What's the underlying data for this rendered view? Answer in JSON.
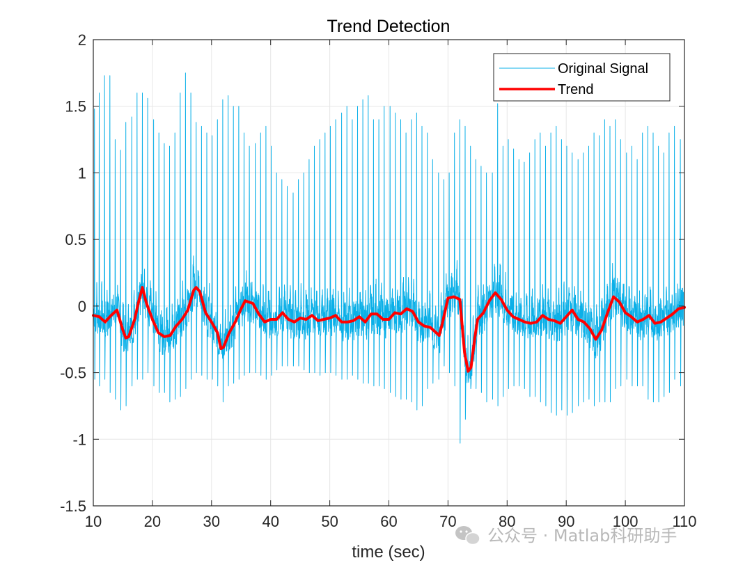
{
  "chart_data": {
    "type": "line",
    "title": "Trend Detection",
    "xlabel": "time (sec)",
    "ylabel": "",
    "xlim": [
      10,
      110
    ],
    "ylim": [
      -1.5,
      2
    ],
    "xticks": [
      10,
      20,
      30,
      40,
      50,
      60,
      70,
      80,
      90,
      100,
      110
    ],
    "yticks": [
      -1.5,
      -1,
      -0.5,
      0,
      0.5,
      1,
      1.5,
      2
    ],
    "xtick_labels": [
      "10",
      "20",
      "30",
      "40",
      "50",
      "60",
      "70",
      "80",
      "90",
      "100",
      "110"
    ],
    "ytick_labels": [
      "-1.5",
      "-1",
      "-0.5",
      "0",
      "0.5",
      "1",
      "1.5",
      "2"
    ],
    "grid": true,
    "legend_position": "top-right",
    "series": [
      {
        "name": "Original Signal",
        "color": "#0BB0E8",
        "style": "thin line, periodic spikes (beats)",
        "spike_times": [
          10.2,
          11.0,
          11.9,
          12.8,
          13.7,
          14.6,
          15.5,
          16.5,
          17.4,
          18.3,
          19.2,
          20.2,
          21.1,
          22.0,
          22.9,
          23.8,
          24.7,
          25.6,
          26.5,
          27.4,
          28.3,
          29.2,
          30.1,
          31.0,
          31.9,
          32.8,
          33.7,
          34.6,
          35.5,
          36.4,
          37.4,
          38.3,
          39.2,
          40.1,
          41.0,
          41.9,
          42.8,
          43.8,
          44.7,
          45.6,
          46.5,
          47.4,
          48.3,
          49.2,
          50.1,
          51.0,
          52.0,
          52.9,
          53.8,
          54.7,
          55.6,
          56.5,
          57.4,
          58.3,
          59.2,
          60.2,
          61.1,
          62.0,
          62.9,
          63.8,
          64.7,
          65.6,
          66.5,
          67.4,
          68.4,
          69.3,
          70.2,
          71.1,
          72.0,
          72.9,
          73.8,
          74.7,
          75.6,
          76.5,
          77.5,
          78.4,
          79.3,
          80.2,
          81.1,
          82.0,
          82.9,
          83.8,
          84.7,
          85.6,
          86.5,
          87.4,
          88.3,
          89.2,
          90.1,
          91.0,
          92.0,
          92.9,
          93.8,
          94.7,
          95.6,
          96.5,
          97.4,
          98.3,
          99.2,
          100.2,
          101.1,
          102.0,
          102.9,
          103.8,
          104.7,
          105.6,
          106.5,
          107.4,
          108.3,
          109.3
        ],
        "spike_peaks": [
          1.48,
          1.6,
          1.73,
          1.73,
          1.25,
          1.17,
          1.38,
          1.42,
          1.6,
          1.6,
          1.56,
          1.4,
          1.3,
          1.22,
          1.2,
          1.3,
          1.6,
          1.75,
          1.6,
          1.38,
          1.35,
          1.3,
          1.28,
          1.4,
          1.55,
          1.58,
          1.5,
          1.5,
          1.3,
          1.2,
          1.22,
          1.3,
          1.35,
          1.2,
          1.0,
          0.95,
          0.9,
          0.85,
          0.95,
          1.0,
          1.1,
          1.2,
          1.25,
          1.3,
          1.35,
          1.4,
          1.45,
          1.5,
          1.4,
          1.5,
          1.55,
          1.58,
          1.4,
          1.4,
          1.5,
          1.5,
          1.45,
          1.4,
          1.3,
          1.4,
          1.45,
          1.35,
          1.3,
          1.1,
          1.0,
          0.95,
          1.0,
          1.3,
          1.4,
          1.35,
          1.2,
          1.1,
          1.05,
          1.0,
          1.0,
          1.52,
          1.2,
          1.25,
          1.18,
          1.1,
          1.08,
          1.15,
          1.25,
          1.3,
          1.2,
          1.3,
          1.35,
          1.25,
          1.2,
          1.15,
          1.1,
          1.15,
          1.2,
          1.3,
          1.28,
          1.4,
          1.35,
          1.4,
          1.25,
          1.15,
          1.2,
          1.1,
          1.3,
          1.35,
          1.3,
          1.2,
          1.15,
          1.3,
          1.35,
          1.25,
          1.2
        ],
        "spike_troughs": [
          -0.55,
          -0.6,
          -0.55,
          -0.65,
          -0.7,
          -0.78,
          -0.75,
          -0.6,
          -0.55,
          -0.55,
          -0.5,
          -0.6,
          -0.65,
          -0.65,
          -0.72,
          -0.7,
          -0.68,
          -0.62,
          -0.55,
          -0.5,
          -0.52,
          -0.55,
          -0.55,
          -0.6,
          -0.72,
          -0.6,
          -0.58,
          -0.55,
          -0.52,
          -0.5,
          -0.5,
          -0.52,
          -0.55,
          -0.52,
          -0.48,
          -0.45,
          -0.45,
          -0.45,
          -0.45,
          -0.48,
          -0.5,
          -0.5,
          -0.52,
          -0.5,
          -0.5,
          -0.52,
          -0.55,
          -0.55,
          -0.52,
          -0.55,
          -0.58,
          -0.58,
          -0.6,
          -0.6,
          -0.62,
          -0.65,
          -0.68,
          -0.7,
          -0.7,
          -0.72,
          -0.78,
          -0.75,
          -0.62,
          -0.58,
          -0.55,
          -0.45,
          -0.5,
          -0.6,
          -1.03,
          -0.85,
          -0.62,
          -0.62,
          -0.65,
          -0.72,
          -0.7,
          -0.75,
          -0.68,
          -0.62,
          -0.6,
          -0.6,
          -0.62,
          -0.68,
          -0.68,
          -0.72,
          -0.75,
          -0.8,
          -0.82,
          -0.78,
          -0.82,
          -0.8,
          -0.75,
          -0.72,
          -0.7,
          -0.75,
          -0.72,
          -0.72,
          -0.72,
          -0.62,
          -0.6,
          -0.55,
          -0.6,
          -0.6,
          -0.6,
          -0.7,
          -0.72,
          -0.72,
          -0.68,
          -0.65,
          -0.55,
          -0.6,
          -0.62
        ]
      },
      {
        "name": "Trend",
        "color": "#FF0000",
        "style": "thick line",
        "x": [
          10,
          11,
          12,
          13,
          14,
          15,
          15.5,
          16,
          17,
          17.6,
          18.3,
          19,
          19.5,
          20,
          21,
          22,
          23,
          24,
          25,
          26,
          27,
          27.4,
          28,
          29,
          30,
          31,
          31.6,
          32,
          33,
          34,
          35,
          35.7,
          36.3,
          37,
          38,
          39,
          40,
          41,
          42,
          43,
          44,
          45,
          46,
          47,
          48,
          49,
          50,
          51,
          52,
          53,
          54,
          55,
          56,
          57,
          58,
          59,
          60,
          61,
          62,
          63,
          64,
          65,
          66,
          67,
          68,
          68.5,
          69,
          70,
          71,
          72,
          72.8,
          73.4,
          73.9,
          74.5,
          75,
          76,
          77,
          78,
          79,
          80,
          81,
          82,
          83,
          84,
          85,
          86,
          87,
          88,
          89,
          90,
          91,
          92,
          93,
          94,
          95,
          96,
          97,
          98,
          99,
          100,
          101,
          102,
          103,
          104,
          105,
          106,
          107,
          108,
          109,
          110
        ],
        "y": [
          -0.07,
          -0.08,
          -0.12,
          -0.07,
          -0.03,
          -0.18,
          -0.24,
          -0.23,
          -0.1,
          0.02,
          0.14,
          0.02,
          -0.04,
          -0.1,
          -0.2,
          -0.23,
          -0.22,
          -0.15,
          -0.1,
          -0.03,
          0.12,
          0.14,
          0.11,
          -0.05,
          -0.12,
          -0.2,
          -0.32,
          -0.31,
          -0.2,
          -0.12,
          -0.02,
          0.04,
          0.03,
          0.02,
          -0.06,
          -0.12,
          -0.1,
          -0.1,
          -0.05,
          -0.1,
          -0.12,
          -0.09,
          -0.1,
          -0.07,
          -0.11,
          -0.1,
          -0.09,
          -0.07,
          -0.12,
          -0.12,
          -0.11,
          -0.08,
          -0.12,
          -0.06,
          -0.06,
          -0.1,
          -0.1,
          -0.05,
          -0.06,
          -0.02,
          -0.04,
          -0.12,
          -0.15,
          -0.16,
          -0.2,
          -0.22,
          -0.14,
          0.06,
          0.07,
          0.05,
          -0.35,
          -0.49,
          -0.46,
          -0.25,
          -0.1,
          -0.05,
          0.04,
          0.1,
          0.05,
          -0.03,
          -0.08,
          -0.1,
          -0.12,
          -0.13,
          -0.12,
          -0.07,
          -0.1,
          -0.11,
          -0.13,
          -0.08,
          -0.03,
          -0.1,
          -0.12,
          -0.17,
          -0.25,
          -0.18,
          -0.05,
          0.07,
          0.03,
          -0.05,
          -0.08,
          -0.12,
          -0.1,
          -0.07,
          -0.13,
          -0.12,
          -0.09,
          -0.06,
          -0.02,
          -0.01
        ]
      }
    ]
  },
  "watermark": {
    "icon": "wechat-icon",
    "text": "公众号 · Matlab科研助手"
  },
  "colors": {
    "signal": "#0BB0E8",
    "trend": "#FF0000",
    "grid": "#E6E6E6",
    "axis": "#262626"
  }
}
